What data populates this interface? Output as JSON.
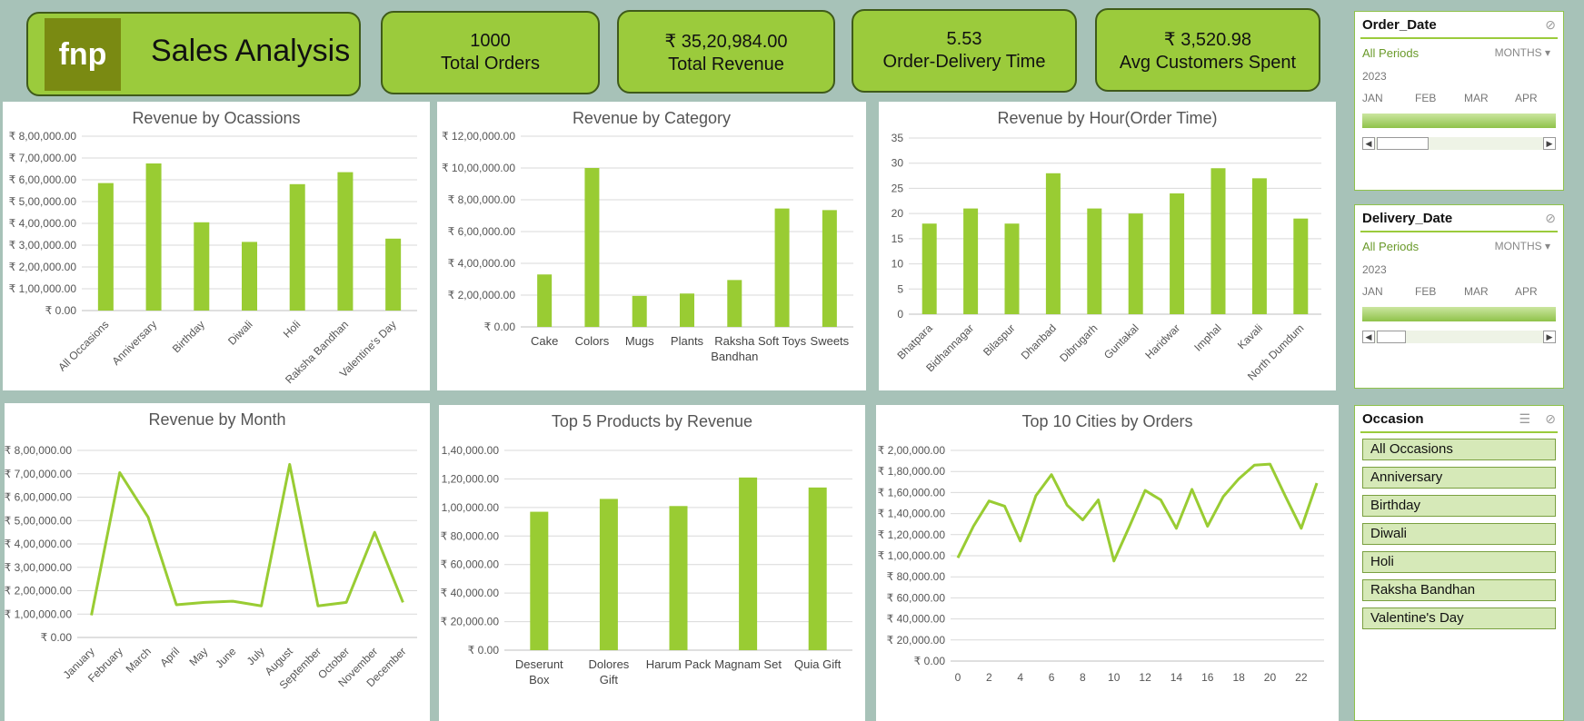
{
  "header": {
    "logo_text": "fnp",
    "title": "Sales Analysis"
  },
  "kpis": [
    {
      "value": "1000",
      "label": "Total Orders"
    },
    {
      "value": "₹ 35,20,984.00",
      "label": "Total Revenue"
    },
    {
      "value": "5.53",
      "label": "Order-Delivery Time"
    },
    {
      "value": "₹ 3,520.98",
      "label": "Avg Customers Spent"
    }
  ],
  "slicers": {
    "order_date": {
      "title": "Order_Date",
      "all": "All Periods",
      "unit": "MONTHS",
      "year": "2023",
      "months": [
        "JAN",
        "FEB",
        "MAR",
        "APR"
      ]
    },
    "delivery_date": {
      "title": "Delivery_Date",
      "all": "All Periods",
      "unit": "MONTHS",
      "year": "2023",
      "months": [
        "JAN",
        "FEB",
        "MAR",
        "APR"
      ]
    },
    "occasion": {
      "title": "Occasion",
      "items": [
        "All Occasions",
        "Anniversary",
        "Birthday",
        "Diwali",
        "Holi",
        "Raksha Bandhan",
        "Valentine's Day"
      ]
    }
  },
  "colors": {
    "bar": "#99cc33",
    "line": "#99cc33",
    "grid": "#d9d9d9"
  },
  "chart_data": [
    {
      "id": "occ",
      "type": "bar",
      "title": "Revenue by Ocassions",
      "categories": [
        "All Occasions",
        "Anniversary",
        "Birthday",
        "Diwali",
        "Holi",
        "Raksha Bandhan",
        "Valentine's Day"
      ],
      "values": [
        585000,
        675000,
        405000,
        315000,
        580000,
        635000,
        330000
      ],
      "ylim": [
        0,
        800000
      ],
      "yticks": [
        "₹ 0.00",
        "₹ 1,00,000.00",
        "₹ 2,00,000.00",
        "₹ 3,00,000.00",
        "₹ 4,00,000.00",
        "₹ 5,00,000.00",
        "₹ 6,00,000.00",
        "₹ 7,00,000.00",
        "₹ 8,00,000.00"
      ]
    },
    {
      "id": "cat",
      "type": "bar",
      "title": "Revenue by Category",
      "categories": [
        "Cake",
        "Colors",
        "Mugs",
        "Plants",
        "Raksha Bandhan",
        "Soft Toys",
        "Sweets"
      ],
      "values": [
        330000,
        1000000,
        195000,
        210000,
        295000,
        745000,
        735000
      ],
      "ylim": [
        0,
        1200000
      ],
      "yticks": [
        "₹ 0.00",
        "₹ 2,00,000.00",
        "₹ 4,00,000.00",
        "₹ 6,00,000.00",
        "₹ 8,00,000.00",
        "₹ 10,00,000.00",
        "₹ 12,00,000.00"
      ]
    },
    {
      "id": "hour",
      "type": "bar",
      "title": "Revenue by Hour(Order Time)",
      "categories": [
        "Bhatpara",
        "Bidhannagar",
        "Bilaspur",
        "Dhanbad",
        "Dibrugarh",
        "Guntakal",
        "Haridwar",
        "Imphal",
        "Kavali",
        "North Dumdum"
      ],
      "values": [
        18,
        21,
        18,
        28,
        21,
        20,
        24,
        29,
        27,
        19
      ],
      "ylim": [
        0,
        35
      ],
      "yticks": [
        "0",
        "5",
        "10",
        "15",
        "20",
        "25",
        "30",
        "35"
      ]
    },
    {
      "id": "month",
      "type": "line",
      "title": "Revenue by Month",
      "categories": [
        "January",
        "February",
        "March",
        "April",
        "May",
        "June",
        "July",
        "August",
        "September",
        "October",
        "November",
        "December"
      ],
      "values": [
        95000,
        705000,
        515000,
        140000,
        150000,
        155000,
        135000,
        740000,
        135000,
        150000,
        450000,
        150000
      ],
      "ylim": [
        0,
        800000
      ],
      "yticks": [
        "₹ 0.00",
        "₹ 1,00,000.00",
        "₹ 2,00,000.00",
        "₹ 3,00,000.00",
        "₹ 4,00,000.00",
        "₹ 5,00,000.00",
        "₹ 6,00,000.00",
        "₹ 7,00,000.00",
        "₹ 8,00,000.00"
      ]
    },
    {
      "id": "prod",
      "type": "bar",
      "title": "Top 5 Products by Revenue",
      "categories": [
        "Deserunt Box",
        "Dolores Gift",
        "Harum Pack",
        "Magnam Set",
        "Quia Gift"
      ],
      "values": [
        97000,
        106000,
        101000,
        121000,
        114000
      ],
      "ylim": [
        0,
        140000
      ],
      "yticks": [
        "₹ 0.00",
        "₹ 20,000.00",
        "₹ 40,000.00",
        "₹ 60,000.00",
        "₹ 80,000.00",
        "₹ 1,00,000.00",
        "₹ 1,20,000.00",
        "₹ 1,40,000.00"
      ]
    },
    {
      "id": "city",
      "type": "line",
      "title": "Top 10 Cities by Orders",
      "x": [
        0,
        1,
        2,
        3,
        4,
        5,
        6,
        7,
        8,
        9,
        10,
        11,
        12,
        13,
        14,
        15,
        16,
        17,
        18,
        19,
        20,
        21,
        22,
        23
      ],
      "xticks": [
        "0",
        "2",
        "4",
        "6",
        "8",
        "10",
        "12",
        "14",
        "16",
        "18",
        "20",
        "22"
      ],
      "values": [
        98000,
        128000,
        152000,
        147000,
        114000,
        157000,
        177000,
        148000,
        134000,
        153000,
        95000,
        128000,
        162000,
        153000,
        126000,
        163000,
        128000,
        156000,
        173000,
        186000,
        187000,
        156000,
        126000,
        169000
      ],
      "ylim": [
        0,
        200000
      ],
      "yticks": [
        "₹ 0.00",
        "₹ 20,000.00",
        "₹ 40,000.00",
        "₹ 60,000.00",
        "₹ 80,000.00",
        "₹ 1,00,000.00",
        "₹ 1,20,000.00",
        "₹ 1,40,000.00",
        "₹ 1,60,000.00",
        "₹ 1,80,000.00",
        "₹ 2,00,000.00"
      ]
    }
  ]
}
